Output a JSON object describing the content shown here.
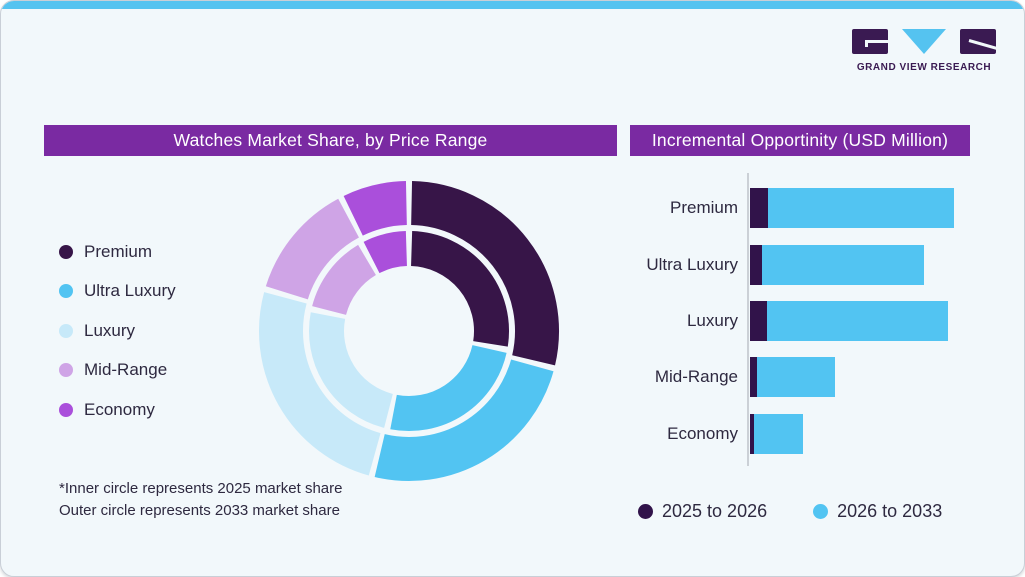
{
  "brand": {
    "name": "GRAND VIEW RESEARCH"
  },
  "colors": {
    "premium": "#371548",
    "ultra_luxury": "#52C4F2",
    "luxury": "#C7E9F9",
    "mid_range": "#CFA4E6",
    "economy": "#AA4FDB",
    "bar_2025_2026": "#31134A",
    "header_bg": "#7A2AA2",
    "accent_bar": "#55C3F0",
    "card_bg": "#F2F8FB",
    "text": "#2E2940",
    "axis": "#CBD0D6",
    "logo_dark": "#3A1A52"
  },
  "left_panel": {
    "title": "Watches Market Share, by Price Range",
    "legend": [
      {
        "label": "Premium",
        "color_key": "premium"
      },
      {
        "label": "Ultra Luxury",
        "color_key": "ultra_luxury"
      },
      {
        "label": "Luxury",
        "color_key": "luxury"
      },
      {
        "label": "Mid-Range",
        "color_key": "mid_range"
      },
      {
        "label": "Economy",
        "color_key": "economy"
      }
    ],
    "footnote_line1": "*Inner circle represents 2025 market share",
    "footnote_line2": "Outer circle represents 2033 market share"
  },
  "right_panel": {
    "title": "Incremental Opportinity (USD Million)",
    "legend": [
      {
        "label": "2025 to 2026",
        "color_key": "bar_2025_2026"
      },
      {
        "label": "2026 to 2033",
        "color_key": "ultra_luxury"
      }
    ]
  },
  "chart_data": [
    {
      "type": "pie",
      "subtype": "double-ring donut",
      "title": "Watches Market Share, by Price Range",
      "categories": [
        "Premium",
        "Ultra Luxury",
        "Luxury",
        "Mid-Range",
        "Economy"
      ],
      "color_keys": [
        "premium",
        "ultra_luxury",
        "luxury",
        "mid_range",
        "economy"
      ],
      "series": [
        {
          "name": "2025 market share (inner circle)",
          "values": [
            28,
            25.5,
            25,
            13.5,
            8
          ]
        },
        {
          "name": "2033 market share (outer circle)",
          "values": [
            29,
            25,
            25.5,
            13,
            7.5
          ]
        }
      ],
      "unit": "percent of circle, estimated from arc angles (no value labels shown)",
      "legend_position": "left"
    },
    {
      "type": "bar",
      "orientation": "horizontal",
      "stacked": true,
      "title": "Incremental Opportinity (USD Million)",
      "categories": [
        "Premium",
        "Ultra Luxury",
        "Luxury",
        "Mid-Range",
        "Economy"
      ],
      "series": [
        {
          "name": "2025 to 2026",
          "color_key": "bar_2025_2026",
          "values": [
            18,
            12,
            17,
            6.5,
            4
          ]
        },
        {
          "name": "2026 to 2033",
          "color_key": "ultra_luxury",
          "values": [
            186,
            162,
            181,
            78.5,
            49
          ]
        }
      ],
      "unit": "relative bar length (no numeric axis labels shown in chart)",
      "axis": {
        "numeric_labels_visible": false,
        "gridlines": false
      },
      "legend_position": "bottom"
    }
  ]
}
